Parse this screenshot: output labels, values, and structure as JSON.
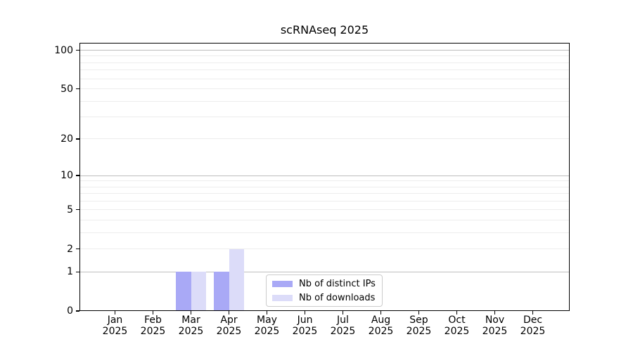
{
  "chart_data": {
    "type": "bar",
    "title": "scRNAseq 2025",
    "categories": [
      "Jan",
      "Feb",
      "Mar",
      "Apr",
      "May",
      "Jun",
      "Jul",
      "Aug",
      "Sep",
      "Oct",
      "Nov",
      "Dec"
    ],
    "category_sublabel": "2025",
    "series": [
      {
        "name": "Nb of distinct IPs",
        "color": "#a9a9f6",
        "values": [
          0,
          0,
          1,
          1,
          0,
          0,
          0,
          0,
          0,
          0,
          0,
          0
        ]
      },
      {
        "name": "Nb of downloads",
        "color": "#dcdcf9",
        "values": [
          0,
          0,
          1,
          2,
          0,
          0,
          0,
          0,
          0,
          0,
          0,
          0
        ]
      }
    ],
    "xlabel": "",
    "ylabel": "",
    "y_scale": "log1p",
    "y_ticks": [
      0,
      1,
      2,
      5,
      10,
      20,
      50,
      100
    ],
    "ylim": [
      0,
      114
    ],
    "grid": {
      "major": [
        1,
        10,
        100
      ],
      "minor": [
        2,
        3,
        4,
        5,
        6,
        7,
        8,
        9,
        20,
        30,
        40,
        50,
        60,
        70,
        80,
        90
      ]
    },
    "legend": {
      "position": "lower center inside"
    }
  },
  "colors": {
    "background": "#ffffff",
    "axis": "#000000",
    "text": "#000000",
    "grid_major": "#bdbdbd",
    "grid_minor": "#ededed"
  }
}
